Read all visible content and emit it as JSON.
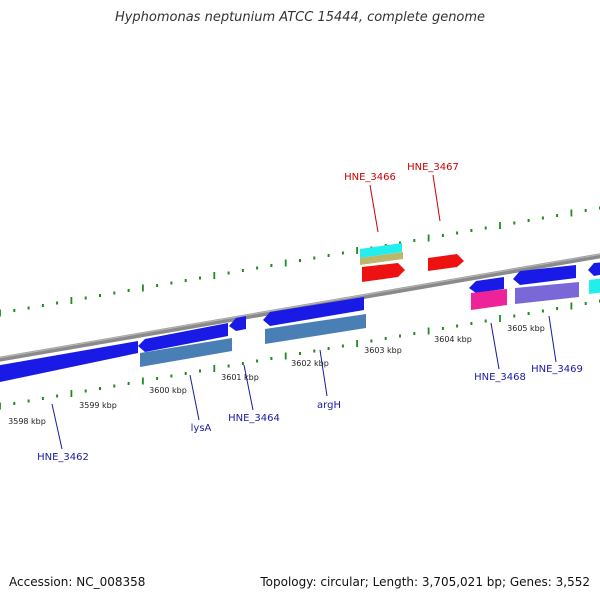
{
  "title": "Hyphomonas neptunium ATCC 15444, complete genome",
  "footer": {
    "accession": "Accession: NC_008358",
    "summary": "Topology: circular; Length: 3,705,021 bp; Genes: 3,552"
  },
  "colors": {
    "backbone": "#8a8a8a",
    "ruler_tick": "#1e8c1e",
    "label_forward": "#cc0000",
    "label_reverse": "#1a1aa6",
    "gene_blue": "#1a1ae6",
    "cds_steel": "#4a7fb5",
    "gene_red": "#ee1111",
    "cds_cyan": "#22eeee",
    "cds_khaki": "#bdb76b",
    "gene_pink": "#ee2299",
    "cds_purple": "#7b68d8"
  },
  "ruler_labels": [
    "3598 kbp",
    "3599 kbp",
    "3600 kbp",
    "3601 kbp",
    "3602 kbp",
    "3603 kbp",
    "3604 kbp",
    "3605 kbp"
  ],
  "gene_labels": [
    {
      "text": "HNE_3462",
      "strand": "reverse"
    },
    {
      "text": "lysA",
      "strand": "reverse"
    },
    {
      "text": "HNE_3464",
      "strand": "reverse"
    },
    {
      "text": "argH",
      "strand": "reverse"
    },
    {
      "text": "HNE_3466",
      "strand": "forward"
    },
    {
      "text": "HNE_3467",
      "strand": "forward"
    },
    {
      "text": "HNE_3468",
      "strand": "reverse"
    },
    {
      "text": "HNE_3469",
      "strand": "reverse"
    }
  ]
}
